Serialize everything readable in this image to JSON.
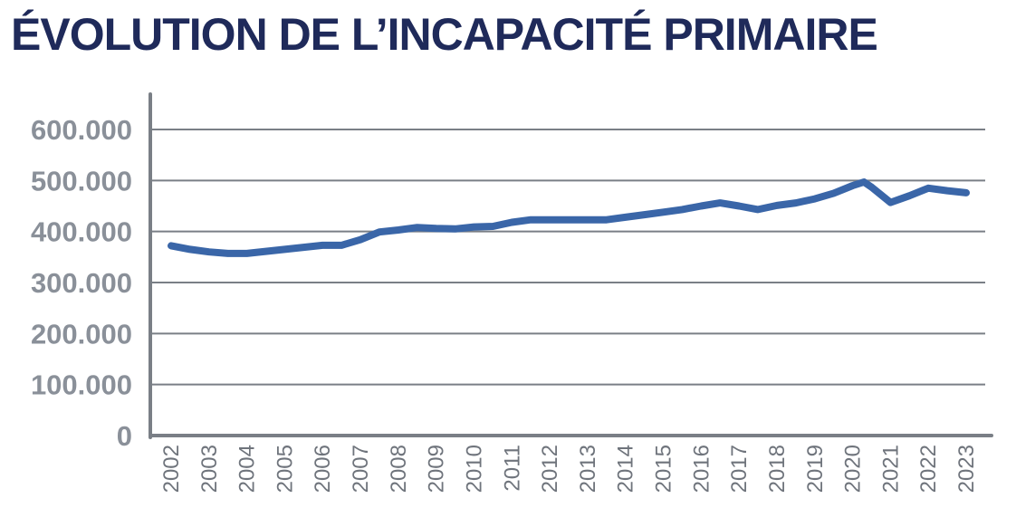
{
  "title": "ÉVOLUTION DE L’INCAPACITÉ PRIMAIRE",
  "colors": {
    "title": "#1f2a5a",
    "line": "#3a66a8",
    "grid": "#7a7f86",
    "axis": "#7a7f86",
    "tick_y": "#8a9099",
    "tick_x": "#6f747c"
  },
  "chart_data": {
    "type": "line",
    "title": "ÉVOLUTION DE L’INCAPACITÉ PRIMAIRE",
    "xlabel": "",
    "ylabel": "",
    "ylim": [
      0,
      600000
    ],
    "grid": true,
    "legend": "none",
    "y_ticks": [
      {
        "value": 0,
        "label": "0"
      },
      {
        "value": 100000,
        "label": "100.000"
      },
      {
        "value": 200000,
        "label": "200.000"
      },
      {
        "value": 300000,
        "label": "300.000"
      },
      {
        "value": 400000,
        "label": "400.000"
      },
      {
        "value": 500000,
        "label": "500.000"
      },
      {
        "value": 600000,
        "label": "600.000"
      }
    ],
    "categories": [
      "2002",
      "2003",
      "2004",
      "2005",
      "2006",
      "2007",
      "2008",
      "2009",
      "2010",
      "2011",
      "2012",
      "2013",
      "2014",
      "2015",
      "2016",
      "2017",
      "2018",
      "2019",
      "2020",
      "2021",
      "2022",
      "2023"
    ],
    "x": [
      2002.0,
      2002.5,
      2003.0,
      2003.5,
      2004.0,
      2004.5,
      2005.0,
      2005.5,
      2006.0,
      2006.5,
      2007.0,
      2007.5,
      2008.0,
      2008.5,
      2009.0,
      2009.5,
      2010.0,
      2010.5,
      2011.0,
      2011.5,
      2012.0,
      2012.5,
      2013.0,
      2013.5,
      2014.0,
      2014.5,
      2015.0,
      2015.5,
      2016.0,
      2016.5,
      2017.0,
      2017.5,
      2018.0,
      2018.5,
      2019.0,
      2019.5,
      2020.0,
      2020.3,
      2020.5,
      2021.0,
      2021.5,
      2022.0,
      2022.5,
      2023.0
    ],
    "series": [
      {
        "values": [
          372000,
          365000,
          360000,
          357000,
          357000,
          361000,
          365000,
          369000,
          373000,
          373000,
          384000,
          399000,
          403000,
          408000,
          406000,
          405000,
          409000,
          410000,
          418000,
          423000,
          423000,
          423000,
          423000,
          423000,
          428000,
          433000,
          438000,
          443000,
          450000,
          456000,
          450000,
          443000,
          451000,
          456000,
          464000,
          475000,
          490000,
          497000,
          487000,
          457000,
          470000,
          485000,
          480000,
          476000
        ]
      }
    ]
  }
}
